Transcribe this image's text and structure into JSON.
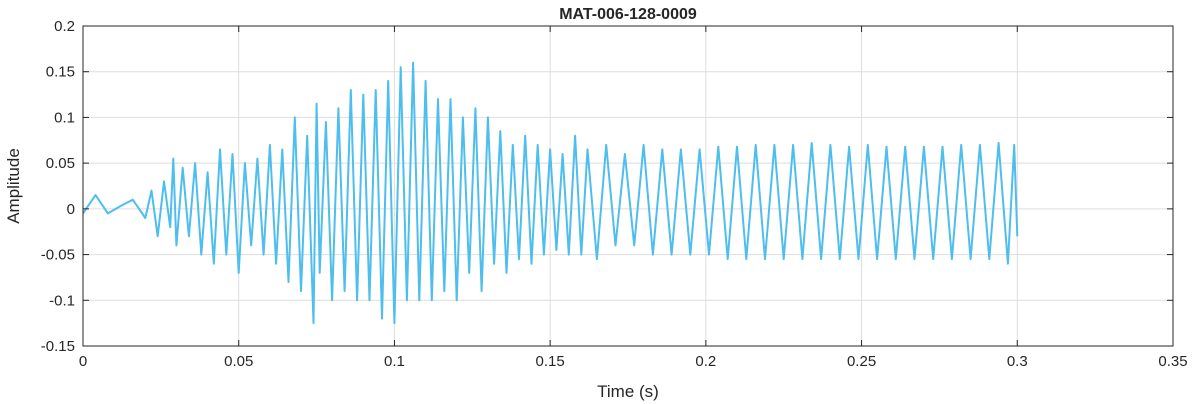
{
  "chart_data": {
    "type": "line",
    "title": "MAT-006-128-0009",
    "xlabel": "Time (s)",
    "ylabel": "Amplitude",
    "xlim": [
      0,
      0.35
    ],
    "ylim": [
      -0.15,
      0.2
    ],
    "xticks": [
      "0",
      "0.05",
      "0.1",
      "0.15",
      "0.2",
      "0.25",
      "0.3",
      "0.35"
    ],
    "xtick_values": [
      0,
      0.05,
      0.1,
      0.15,
      0.2,
      0.25,
      0.3,
      0.35
    ],
    "yticks": [
      "0.2",
      "0.15",
      "0.1",
      "0.05",
      "0",
      "-0.05",
      "-0.1",
      "-0.15"
    ],
    "ytick_values": [
      0.2,
      0.15,
      0.1,
      0.05,
      0,
      -0.05,
      -0.1,
      -0.15
    ],
    "grid": true,
    "line_color": "#4dbeee",
    "series": [
      {
        "x": [
          0,
          0.004,
          0.008,
          0.012,
          0.016,
          0.02,
          0.022,
          0.024,
          0.026,
          0.028,
          0.029,
          0.03,
          0.032,
          0.034,
          0.036,
          0.038,
          0.04,
          0.042,
          0.044,
          0.046,
          0.048,
          0.05,
          0.052,
          0.054,
          0.056,
          0.058,
          0.06,
          0.062,
          0.064,
          0.066,
          0.068,
          0.07,
          0.072,
          0.074,
          0.075,
          0.076,
          0.078,
          0.08,
          0.082,
          0.084,
          0.086,
          0.088,
          0.09,
          0.092,
          0.094,
          0.096,
          0.098,
          0.1,
          0.102,
          0.104,
          0.106,
          0.108,
          0.11,
          0.112,
          0.114,
          0.116,
          0.118,
          0.12,
          0.122,
          0.124,
          0.126,
          0.128,
          0.13,
          0.132,
          0.134,
          0.136,
          0.138,
          0.14,
          0.142,
          0.144,
          0.146,
          0.148,
          0.15,
          0.152,
          0.154,
          0.156,
          0.158,
          0.16,
          0.162,
          0.165,
          0.168,
          0.171,
          0.174,
          0.177,
          0.18,
          0.183,
          0.186,
          0.189,
          0.192,
          0.195,
          0.198,
          0.201,
          0.204,
          0.207,
          0.21,
          0.213,
          0.216,
          0.219,
          0.222,
          0.225,
          0.228,
          0.231,
          0.234,
          0.237,
          0.24,
          0.243,
          0.246,
          0.249,
          0.252,
          0.255,
          0.258,
          0.261,
          0.264,
          0.267,
          0.27,
          0.273,
          0.276,
          0.279,
          0.282,
          0.285,
          0.288,
          0.291,
          0.294,
          0.297,
          0.299,
          0.3
        ],
        "y": [
          -0.005,
          0.015,
          -0.005,
          0.003,
          0.01,
          -0.01,
          0.02,
          -0.03,
          0.03,
          -0.02,
          0.055,
          -0.04,
          0.045,
          -0.03,
          0.05,
          -0.05,
          0.04,
          -0.06,
          0.065,
          -0.05,
          0.06,
          -0.07,
          0.05,
          -0.04,
          0.055,
          -0.05,
          0.07,
          -0.06,
          0.065,
          -0.08,
          0.1,
          -0.09,
          0.08,
          -0.125,
          0.115,
          -0.07,
          0.095,
          -0.1,
          0.11,
          -0.09,
          0.13,
          -0.1,
          0.125,
          -0.1,
          0.13,
          -0.12,
          0.14,
          -0.125,
          0.155,
          -0.1,
          0.16,
          -0.1,
          0.14,
          -0.1,
          0.12,
          -0.09,
          0.12,
          -0.1,
          0.1,
          -0.07,
          0.11,
          -0.09,
          0.1,
          -0.06,
          0.085,
          -0.07,
          0.07,
          -0.055,
          0.08,
          -0.06,
          0.07,
          -0.05,
          0.065,
          -0.045,
          0.06,
          -0.05,
          0.08,
          -0.05,
          0.065,
          -0.055,
          0.07,
          -0.04,
          0.06,
          -0.04,
          0.07,
          -0.05,
          0.065,
          -0.05,
          0.065,
          -0.05,
          0.065,
          -0.05,
          0.068,
          -0.055,
          0.068,
          -0.055,
          0.07,
          -0.055,
          0.07,
          -0.055,
          0.07,
          -0.055,
          0.072,
          -0.055,
          0.07,
          -0.055,
          0.068,
          -0.055,
          0.07,
          -0.055,
          0.068,
          -0.055,
          0.068,
          -0.055,
          0.068,
          -0.055,
          0.068,
          -0.055,
          0.07,
          -0.055,
          0.07,
          -0.055,
          0.072,
          -0.06,
          0.07,
          -0.03
        ]
      }
    ]
  }
}
